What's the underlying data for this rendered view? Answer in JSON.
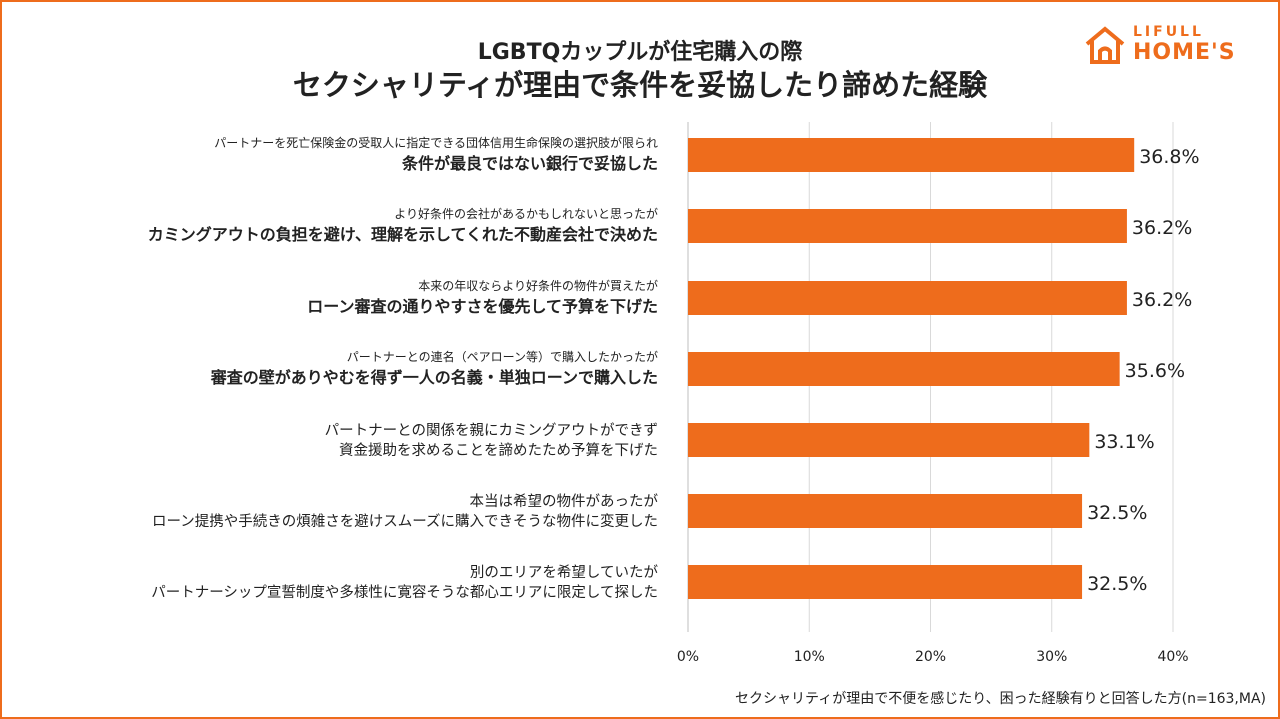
{
  "header": {
    "title_line1": "LGBTQカップルが住宅購入の際",
    "title_line2": "セクシャリティが理由で条件を妥協したり諦めた経験"
  },
  "logo": {
    "line1": "LIFULL",
    "line2": "HOME'S",
    "icon": "house-icon"
  },
  "footnote": "セクシャリティが理由で不便を感じたり、困った経験有りと回答した方(n=163,MA)",
  "colors": {
    "bar": "#ee6c1c",
    "grid": "#d9d9d9",
    "frame": "#ee6c1c"
  },
  "chart_data": {
    "type": "bar",
    "orientation": "horizontal",
    "xlim": [
      0,
      40
    ],
    "ticks": [
      "0%",
      "10%",
      "20%",
      "30%",
      "40%"
    ],
    "tick_values": [
      0,
      10,
      20,
      30,
      40
    ],
    "grid": true,
    "categories": [
      {
        "line1": "パートナーを死亡保険金の受取人に指定できる団体信用生命保険の選択肢が限られ",
        "line2": "条件が最良ではない銀行で妥協した",
        "style": "small-big"
      },
      {
        "line1": "より好条件の会社があるかもしれないと思ったが",
        "line2": "カミングアウトの負担を避け、理解を示してくれた不動産会社で決めた",
        "style": "small-big"
      },
      {
        "line1": "本来の年収ならより好条件の物件が買えたが",
        "line2": "ローン審査の通りやすさを優先して予算を下げた",
        "style": "small-big"
      },
      {
        "line1": "パートナーとの連名（ペアローン等）で購入したかったが",
        "line2": "審査の壁がありやむを得ず一人の名義・単独ローンで購入した",
        "style": "small-big"
      },
      {
        "line1": "パートナーとの関係を親にカミングアウトができず",
        "line2": "資金援助を求めることを諦めたため予算を下げた",
        "style": "medium"
      },
      {
        "line1": "本当は希望の物件があったが",
        "line2": "ローン提携や手続きの煩雑さを避けスムーズに購入できそうな物件に変更した",
        "style": "medium"
      },
      {
        "line1": "別のエリアを希望していたが",
        "line2": "パートナーシップ宣誓制度や多様性に寛容そうな都心エリアに限定して探した",
        "style": "medium"
      }
    ],
    "values": [
      36.8,
      36.2,
      36.2,
      35.6,
      33.1,
      32.5,
      32.5
    ],
    "value_labels": [
      "36.8%",
      "36.2%",
      "36.2%",
      "35.6%",
      "33.1%",
      "32.5%",
      "32.5%"
    ]
  }
}
